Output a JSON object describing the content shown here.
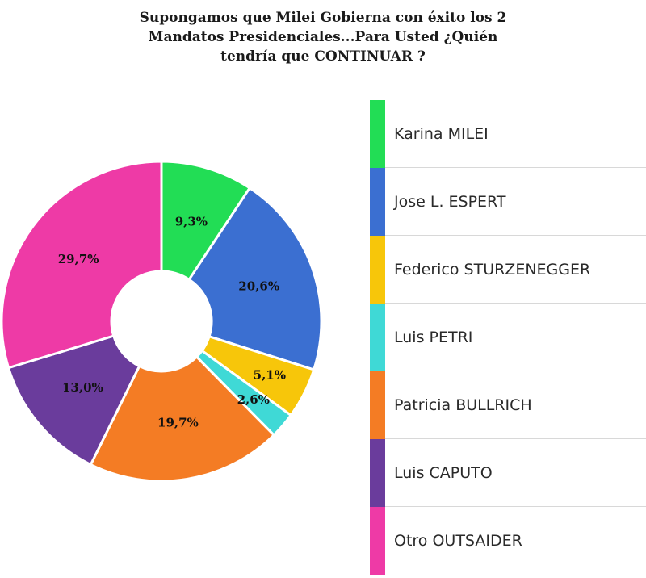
{
  "chart_data": {
    "type": "pie",
    "title_lines": [
      "Supongamos que Milei Gobierna con éxito los 2",
      "Mandatos Presidenciales...Para Usted ¿Quién",
      "tendría que CONTINUAR ?"
    ],
    "slices": [
      {
        "name": "Karina MILEI",
        "value": 9.3,
        "label": "9,3%",
        "color": "#22dd55"
      },
      {
        "name": "Jose L. ESPERT",
        "value": 20.6,
        "label": "20,6%",
        "color": "#3b6fd1"
      },
      {
        "name": "Federico STURZENEGGER",
        "value": 5.1,
        "label": "5,1%",
        "color": "#f7c60a"
      },
      {
        "name": "Luis PETRI",
        "value": 2.6,
        "label": "2,6%",
        "color": "#3fd9d6"
      },
      {
        "name": "Patricia BULLRICH",
        "value": 19.7,
        "label": "19,7%",
        "color": "#f47c24"
      },
      {
        "name": "Luis CAPUTO",
        "value": 13.0,
        "label": "13,0%",
        "color": "#6a3c9c"
      },
      {
        "name": "Otro OUTSAIDER",
        "value": 29.7,
        "label": "29,7%",
        "color": "#ee3aa6"
      }
    ],
    "donut": true,
    "legend_position": "right"
  }
}
